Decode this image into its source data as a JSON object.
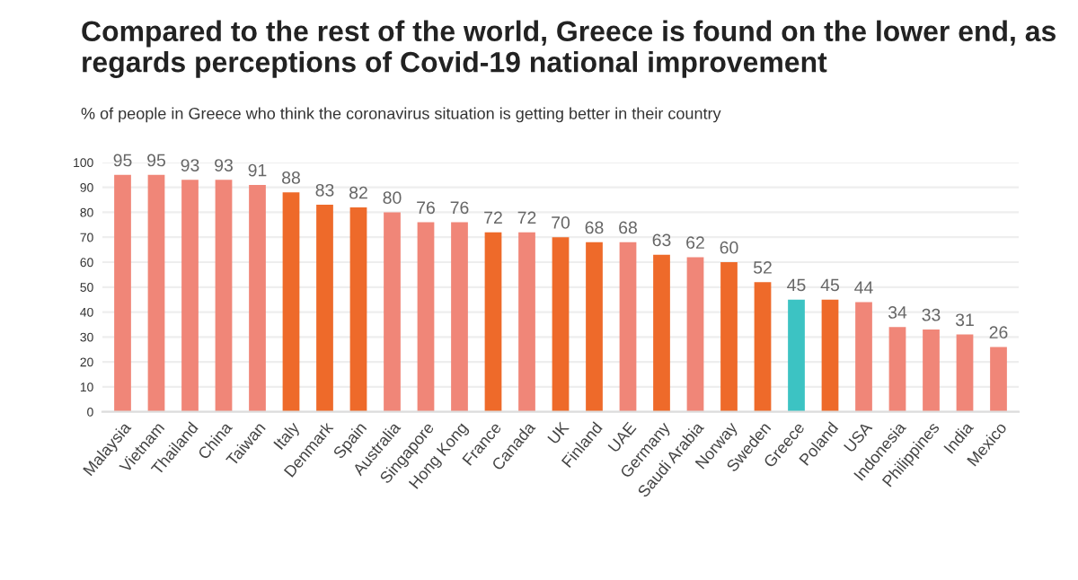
{
  "chart_data": {
    "type": "bar",
    "title": "Compared to the rest of the world, Greece is found on the lower end, as regards perceptions of Covid-19 national improvement",
    "subtitle": "% of people in Greece who think the coronavirus situation is getting better in their country",
    "categories": [
      "Malaysia",
      "Vietnam",
      "Thailand",
      "China",
      "Taiwan",
      "Italy",
      "Denmark",
      "Spain",
      "Australia",
      "Singapore",
      "Hong Kong",
      "France",
      "Canada",
      "UK",
      "Finland",
      "UAE",
      "Germany",
      "Saudi Arabia",
      "Norway",
      "Sweden",
      "Greece",
      "Poland",
      "USA",
      "Indonesia",
      "Philippines",
      "India",
      "Mexico"
    ],
    "values": [
      95,
      95,
      93,
      93,
      91,
      88,
      83,
      82,
      80,
      76,
      76,
      72,
      72,
      70,
      68,
      68,
      63,
      62,
      60,
      52,
      45,
      45,
      44,
      34,
      33,
      31,
      26
    ],
    "colors": [
      "#f08678",
      "#f08678",
      "#f08678",
      "#f08678",
      "#f08678",
      "#ee6a2a",
      "#ee6a2a",
      "#ee6a2a",
      "#f08678",
      "#f08678",
      "#f08678",
      "#ee6a2a",
      "#f08678",
      "#ee6a2a",
      "#ee6a2a",
      "#f08678",
      "#ee6a2a",
      "#f08678",
      "#ee6a2a",
      "#ee6a2a",
      "#3cc3c3",
      "#ee6a2a",
      "#f08678",
      "#f08678",
      "#f08678",
      "#f08678",
      "#f08678"
    ],
    "ylim": [
      0,
      100
    ],
    "yticks": [
      0,
      10,
      20,
      30,
      40,
      50,
      60,
      70,
      80,
      90,
      100
    ],
    "grid": "y",
    "data_labels": true
  }
}
